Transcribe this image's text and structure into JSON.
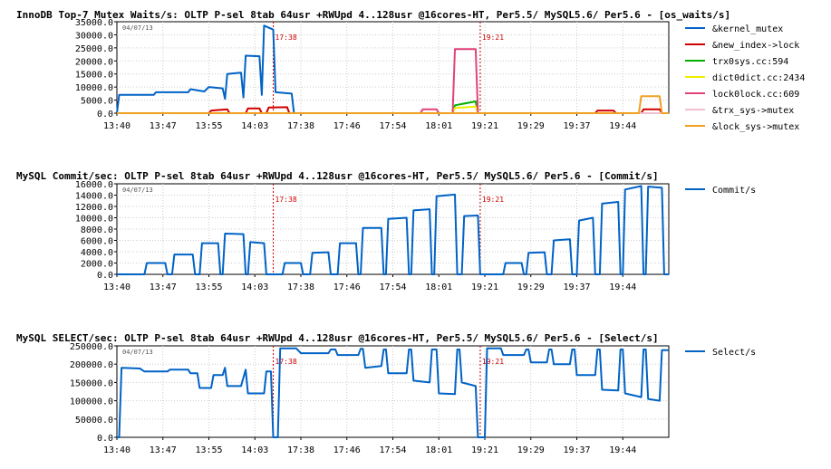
{
  "chart_data": [
    {
      "type": "line",
      "title": "InnoDB Top-7 Mutex Waits/s: OLTP P-sel 8tab 64usr +RWUpd 4..128usr @16cores-HT, Per5.5/ MySQL5.6/ Per5.6 - [os_waits/s]",
      "date": "04/07/13",
      "ylim": [
        0,
        35000
      ],
      "yticks": [
        "0.0",
        "5000.0",
        "10000.0",
        "15000.0",
        "20000.0",
        "25000.0",
        "30000.0",
        "35000.0"
      ],
      "xticks": [
        "13:40",
        "13:47",
        "13:55",
        "14:03",
        "17:38",
        "17:46",
        "17:54",
        "18:01",
        "19:21",
        "19:29",
        "19:37",
        "19:44"
      ],
      "markers": [
        {
          "at": 3.4,
          "label": "17:38"
        },
        {
          "at": 7.9,
          "label": "19:21"
        }
      ],
      "series": [
        {
          "name": "&kernel_mutex",
          "color": "#0063c6",
          "points": [
            [
              0,
              0
            ],
            [
              0.05,
              7000
            ],
            [
              0.8,
              7000
            ],
            [
              0.85,
              8000
            ],
            [
              1.55,
              8000
            ],
            [
              1.6,
              9200
            ],
            [
              1.9,
              8300
            ],
            [
              2.0,
              10000
            ],
            [
              2.3,
              9500
            ],
            [
              2.35,
              5500
            ],
            [
              2.4,
              15000
            ],
            [
              2.7,
              15500
            ],
            [
              2.75,
              6000
            ],
            [
              2.8,
              22000
            ],
            [
              3.1,
              21800
            ],
            [
              3.15,
              7000
            ],
            [
              3.2,
              33500
            ],
            [
              3.4,
              32000
            ],
            [
              3.45,
              8000
            ],
            [
              3.8,
              7500
            ],
            [
              3.85,
              0
            ],
            [
              12,
              0
            ]
          ]
        },
        {
          "name": "&new_index->lock",
          "color": "#d10000",
          "points": [
            [
              0,
              0
            ],
            [
              2.0,
              0
            ],
            [
              2.05,
              1000
            ],
            [
              2.4,
              1500
            ],
            [
              2.45,
              0
            ],
            [
              2.8,
              0
            ],
            [
              2.85,
              1800
            ],
            [
              3.1,
              1800
            ],
            [
              3.15,
              0
            ],
            [
              3.25,
              0
            ],
            [
              3.3,
              2200
            ],
            [
              3.7,
              2300
            ],
            [
              3.75,
              0
            ],
            [
              10.4,
              0
            ],
            [
              10.45,
              1000
            ],
            [
              10.8,
              1000
            ],
            [
              10.85,
              0
            ],
            [
              11.4,
              0
            ],
            [
              11.45,
              1500
            ],
            [
              11.8,
              1500
            ],
            [
              11.85,
              0
            ],
            [
              12,
              0
            ]
          ]
        },
        {
          "name": "trx0sys.cc:594",
          "color": "#00b000",
          "points": [
            [
              0,
              0
            ],
            [
              7.3,
              0
            ],
            [
              7.35,
              3000
            ],
            [
              7.8,
              4500
            ],
            [
              7.85,
              0
            ],
            [
              12,
              0
            ]
          ]
        },
        {
          "name": "dict0dict.cc:2434",
          "color": "#eeee00",
          "points": [
            [
              0,
              0
            ],
            [
              7.3,
              0
            ],
            [
              7.35,
              2000
            ],
            [
              7.8,
              2500
            ],
            [
              7.85,
              0
            ],
            [
              12,
              0
            ]
          ]
        },
        {
          "name": "lock0lock.cc:609",
          "color": "#e2417c",
          "points": [
            [
              0,
              0
            ],
            [
              6.6,
              0
            ],
            [
              6.65,
              1500
            ],
            [
              6.95,
              1500
            ],
            [
              7.0,
              0
            ],
            [
              7.3,
              0
            ],
            [
              7.35,
              24500
            ],
            [
              7.8,
              24500
            ],
            [
              7.85,
              0
            ],
            [
              12,
              0
            ]
          ]
        },
        {
          "name": "&trx_sys->mutex",
          "color": "#f0c0d0",
          "points": [
            [
              0,
              0
            ],
            [
              12,
              0
            ]
          ]
        },
        {
          "name": "&lock_sys->mutex",
          "color": "#f0a020",
          "points": [
            [
              0,
              0
            ],
            [
              11.35,
              0
            ],
            [
              11.4,
              6500
            ],
            [
              11.8,
              6500
            ],
            [
              11.85,
              0
            ],
            [
              12,
              0
            ]
          ]
        }
      ]
    },
    {
      "type": "line",
      "title": "MySQL Commit/sec: OLTP P-sel 8tab 64usr +RWUpd 4..128usr @16cores-HT, Per5.5/ MySQL5.6/ Per5.6 - [Commit/s]",
      "date": "04/07/13",
      "ylim": [
        0,
        16000
      ],
      "yticks": [
        "0.0",
        "2000.0",
        "4000.0",
        "6000.0",
        "8000.0",
        "10000.0",
        "12000.0",
        "14000.0",
        "16000.0"
      ],
      "xticks": [
        "13:40",
        "13:47",
        "13:55",
        "14:03",
        "17:38",
        "17:46",
        "17:54",
        "18:01",
        "19:21",
        "19:29",
        "19:37",
        "19:44"
      ],
      "markers": [
        {
          "at": 3.4,
          "label": "17:38"
        },
        {
          "at": 7.9,
          "label": "19:21"
        }
      ],
      "series": [
        {
          "name": "Commit/s",
          "color": "#0063c6",
          "points": [
            [
              0,
              0
            ],
            [
              0.6,
              0
            ],
            [
              0.65,
              2000
            ],
            [
              1.05,
              2000
            ],
            [
              1.1,
              0
            ],
            [
              1.2,
              0
            ],
            [
              1.25,
              3500
            ],
            [
              1.65,
              3500
            ],
            [
              1.7,
              0
            ],
            [
              1.8,
              0
            ],
            [
              1.85,
              5500
            ],
            [
              2.2,
              5500
            ],
            [
              2.25,
              0
            ],
            [
              2.3,
              0
            ],
            [
              2.35,
              7200
            ],
            [
              2.75,
              7100
            ],
            [
              2.8,
              0
            ],
            [
              2.85,
              0
            ],
            [
              2.9,
              5700
            ],
            [
              3.2,
              5500
            ],
            [
              3.25,
              0
            ],
            [
              3.6,
              0
            ],
            [
              3.65,
              2000
            ],
            [
              4.0,
              2000
            ],
            [
              4.05,
              0
            ],
            [
              4.2,
              0
            ],
            [
              4.25,
              3800
            ],
            [
              4.6,
              3900
            ],
            [
              4.65,
              0
            ],
            [
              4.8,
              0
            ],
            [
              4.85,
              5500
            ],
            [
              5.2,
              5500
            ],
            [
              5.25,
              0
            ],
            [
              5.3,
              0
            ],
            [
              5.35,
              8200
            ],
            [
              5.75,
              8200
            ],
            [
              5.8,
              0
            ],
            [
              5.85,
              0
            ],
            [
              5.9,
              9800
            ],
            [
              6.3,
              10000
            ],
            [
              6.35,
              0
            ],
            [
              6.4,
              0
            ],
            [
              6.45,
              11300
            ],
            [
              6.8,
              11500
            ],
            [
              6.85,
              0
            ],
            [
              6.9,
              0
            ],
            [
              6.95,
              13800
            ],
            [
              7.35,
              14100
            ],
            [
              7.4,
              0
            ],
            [
              7.5,
              0
            ],
            [
              7.55,
              10300
            ],
            [
              7.85,
              10400
            ],
            [
              7.9,
              0
            ],
            [
              8.4,
              0
            ],
            [
              8.45,
              2000
            ],
            [
              8.8,
              2000
            ],
            [
              8.85,
              0
            ],
            [
              8.9,
              0
            ],
            [
              8.95,
              3800
            ],
            [
              9.3,
              3900
            ],
            [
              9.35,
              0
            ],
            [
              9.45,
              0
            ],
            [
              9.5,
              6000
            ],
            [
              9.85,
              6200
            ],
            [
              9.9,
              0
            ],
            [
              10.0,
              0
            ],
            [
              10.05,
              9500
            ],
            [
              10.35,
              10000
            ],
            [
              10.4,
              0
            ],
            [
              10.5,
              0
            ],
            [
              10.55,
              12500
            ],
            [
              10.9,
              12800
            ],
            [
              10.95,
              0
            ],
            [
              11.0,
              0
            ],
            [
              11.05,
              15000
            ],
            [
              11.4,
              15600
            ],
            [
              11.45,
              0
            ],
            [
              11.5,
              0
            ],
            [
              11.55,
              15500
            ],
            [
              11.85,
              15300
            ],
            [
              11.9,
              0
            ],
            [
              12,
              0
            ]
          ]
        }
      ]
    },
    {
      "type": "line",
      "title": "MySQL SELECT/sec: OLTP P-sel 8tab 64usr +RWUpd 4..128usr @16cores-HT, Per5.5/ MySQL5.6/ Per5.6 - [Select/s]",
      "date": "04/07/13",
      "ylim": [
        0,
        250000
      ],
      "yticks": [
        "0.0",
        "50000.0",
        "100000.0",
        "150000.0",
        "200000.0",
        "250000.0"
      ],
      "xticks": [
        "13:40",
        "13:47",
        "13:55",
        "14:03",
        "17:38",
        "17:46",
        "17:54",
        "18:01",
        "19:21",
        "19:29",
        "19:37",
        "19:44"
      ],
      "markers": [
        {
          "at": 3.4,
          "label": "17:38"
        },
        {
          "at": 7.9,
          "label": "19:21"
        }
      ],
      "series": [
        {
          "name": "Select/s",
          "color": "#0063c6",
          "points": [
            [
              0,
              0
            ],
            [
              0.05,
              0
            ],
            [
              0.1,
              190000
            ],
            [
              0.5,
              188000
            ],
            [
              0.6,
              180000
            ],
            [
              1.1,
              180000
            ],
            [
              1.15,
              185000
            ],
            [
              1.55,
              185000
            ],
            [
              1.6,
              175000
            ],
            [
              1.75,
              175000
            ],
            [
              1.8,
              135000
            ],
            [
              2.05,
              135000
            ],
            [
              2.1,
              170000
            ],
            [
              2.3,
              170000
            ],
            [
              2.35,
              190000
            ],
            [
              2.4,
              140000
            ],
            [
              2.7,
              140000
            ],
            [
              2.8,
              185000
            ],
            [
              2.85,
              120000
            ],
            [
              3.2,
              120000
            ],
            [
              3.25,
              180000
            ],
            [
              3.35,
              180000
            ],
            [
              3.4,
              0
            ],
            [
              3.5,
              0
            ],
            [
              3.55,
              243000
            ],
            [
              3.9,
              243000
            ],
            [
              4.0,
              230000
            ],
            [
              4.6,
              230000
            ],
            [
              4.65,
              240000
            ],
            [
              4.75,
              240000
            ],
            [
              4.8,
              225000
            ],
            [
              5.25,
              225000
            ],
            [
              5.3,
              242000
            ],
            [
              5.35,
              242000
            ],
            [
              5.4,
              190000
            ],
            [
              5.75,
              195000
            ],
            [
              5.8,
              240000
            ],
            [
              5.85,
              240000
            ],
            [
              5.9,
              175000
            ],
            [
              6.3,
              175000
            ],
            [
              6.35,
              240000
            ],
            [
              6.4,
              240000
            ],
            [
              6.45,
              155000
            ],
            [
              6.8,
              150000
            ],
            [
              6.85,
              240000
            ],
            [
              6.95,
              240000
            ],
            [
              7.0,
              120000
            ],
            [
              7.35,
              118000
            ],
            [
              7.4,
              240000
            ],
            [
              7.45,
              240000
            ],
            [
              7.5,
              150000
            ],
            [
              7.8,
              140000
            ],
            [
              7.85,
              0
            ],
            [
              8.0,
              0
            ],
            [
              8.05,
              243000
            ],
            [
              8.35,
              243000
            ],
            [
              8.4,
              225000
            ],
            [
              8.85,
              225000
            ],
            [
              8.9,
              240000
            ],
            [
              8.95,
              240000
            ],
            [
              9.0,
              205000
            ],
            [
              9.35,
              205000
            ],
            [
              9.4,
              240000
            ],
            [
              9.45,
              240000
            ],
            [
              9.5,
              200000
            ],
            [
              9.85,
              200000
            ],
            [
              9.9,
              240000
            ],
            [
              9.95,
              240000
            ],
            [
              10.0,
              170000
            ],
            [
              10.4,
              170000
            ],
            [
              10.45,
              240000
            ],
            [
              10.5,
              240000
            ],
            [
              10.55,
              130000
            ],
            [
              10.9,
              128000
            ],
            [
              10.95,
              240000
            ],
            [
              11.0,
              240000
            ],
            [
              11.05,
              120000
            ],
            [
              11.4,
              110000
            ],
            [
              11.45,
              240000
            ],
            [
              11.5,
              240000
            ],
            [
              11.55,
              105000
            ],
            [
              11.8,
              100000
            ],
            [
              11.85,
              238000
            ],
            [
              12,
              238000
            ]
          ]
        }
      ]
    }
  ]
}
